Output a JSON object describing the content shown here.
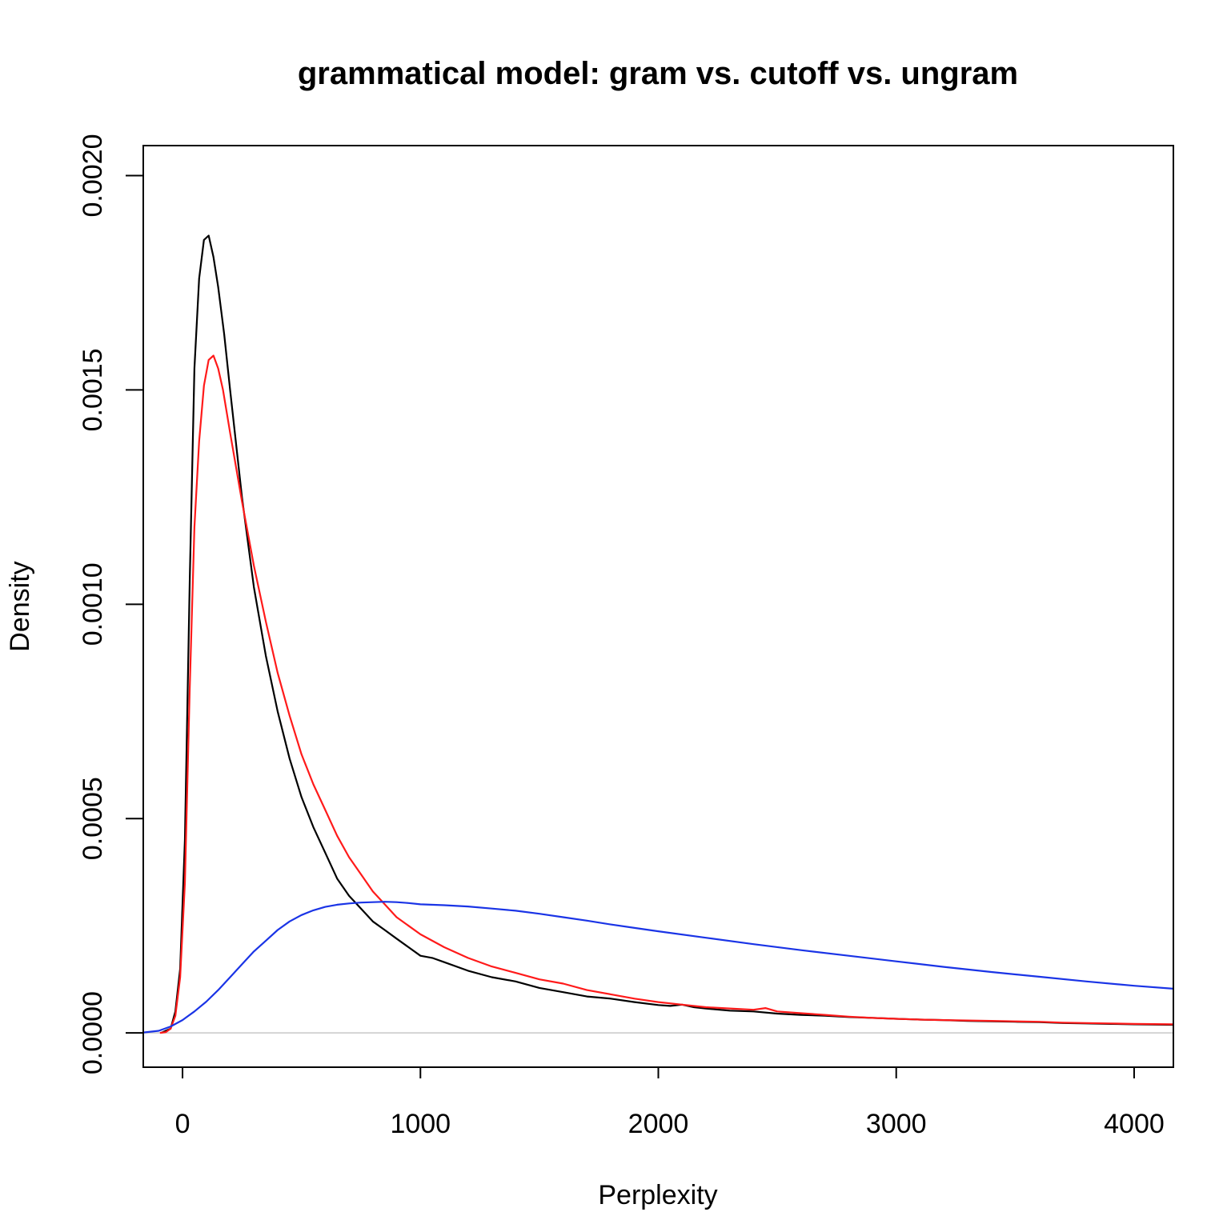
{
  "chart_data": {
    "type": "line",
    "title": "grammatical model: gram vs. cutoff vs. ungram",
    "xlabel": "Perplexity",
    "ylabel": "Density",
    "xlim": [
      -165,
      4165
    ],
    "ylim": [
      -8e-05,
      0.00207
    ],
    "x_ticks": [
      0,
      1000,
      2000,
      3000,
      4000
    ],
    "x_tick_labels": [
      "0",
      "1000",
      "2000",
      "3000",
      "4000"
    ],
    "y_ticks": [
      0,
      0.0005,
      0.001,
      0.0015,
      0.002
    ],
    "y_tick_labels": [
      "0.0000",
      "0.0005",
      "0.0010",
      "0.0015",
      "0.0020"
    ],
    "grid": false,
    "legend": "none",
    "reference_line": {
      "y": 0,
      "color": "#c8c8c8"
    },
    "series": [
      {
        "color": "#000000",
        "x": [
          -90,
          -50,
          -30,
          -10,
          10,
          30,
          50,
          70,
          90,
          110,
          130,
          150,
          175,
          200,
          250,
          300,
          350,
          400,
          450,
          500,
          550,
          600,
          650,
          700,
          750,
          800,
          850,
          900,
          950,
          1000,
          1050,
          1100,
          1200,
          1300,
          1400,
          1500,
          1600,
          1700,
          1800,
          1900,
          2000,
          2050,
          2100,
          2150,
          2200,
          2300,
          2400,
          2500,
          2600,
          2700,
          2800,
          2900,
          3000,
          3100,
          3200,
          3300,
          3400,
          3500,
          3600,
          3700,
          3800,
          3900,
          4000,
          4165
        ],
        "y": [
          0,
          1e-05,
          5e-05,
          0.00015,
          0.00045,
          0.00105,
          0.00155,
          0.00176,
          0.00185,
          0.00186,
          0.00181,
          0.00174,
          0.00163,
          0.0015,
          0.00125,
          0.00104,
          0.00088,
          0.00075,
          0.00064,
          0.00055,
          0.00048,
          0.00042,
          0.00036,
          0.00032,
          0.00029,
          0.00026,
          0.00024,
          0.00022,
          0.0002,
          0.00018,
          0.000175,
          0.000165,
          0.000145,
          0.00013,
          0.00012,
          0.000105,
          9.5e-05,
          8.5e-05,
          8e-05,
          7.2e-05,
          6.5e-05,
          6.3e-05,
          6.6e-05,
          6e-05,
          5.7e-05,
          5.2e-05,
          5e-05,
          4.5e-05,
          4.2e-05,
          4e-05,
          3.7e-05,
          3.5e-05,
          3.3e-05,
          3.1e-05,
          3e-05,
          2.8e-05,
          2.7e-05,
          2.6e-05,
          2.5e-05,
          2.3e-05,
          2.2e-05,
          2.1e-05,
          2e-05,
          1.9e-05
        ]
      },
      {
        "color": "#ff1a1a",
        "x": [
          -95,
          -70,
          -50,
          -30,
          -10,
          10,
          30,
          50,
          70,
          90,
          110,
          130,
          150,
          170,
          200,
          250,
          300,
          350,
          400,
          450,
          500,
          550,
          600,
          650,
          700,
          750,
          800,
          850,
          900,
          950,
          1000,
          1100,
          1200,
          1300,
          1400,
          1500,
          1600,
          1700,
          1800,
          1900,
          2000,
          2100,
          2200,
          2300,
          2400,
          2450,
          2500,
          2600,
          2700,
          2800,
          2900,
          3000,
          3100,
          3200,
          3300,
          3400,
          3500,
          3600,
          3700,
          3800,
          3900,
          4000,
          4165
        ],
        "y": [
          0,
          2e-06,
          1e-05,
          4e-05,
          0.00013,
          0.00035,
          0.0008,
          0.00118,
          0.00138,
          0.00151,
          0.00157,
          0.00158,
          0.00155,
          0.0015,
          0.0014,
          0.00124,
          0.00109,
          0.00096,
          0.00084,
          0.00074,
          0.00065,
          0.00058,
          0.00052,
          0.00046,
          0.00041,
          0.00037,
          0.00033,
          0.0003,
          0.00027,
          0.00025,
          0.00023,
          0.0002,
          0.000175,
          0.000155,
          0.00014,
          0.000125,
          0.000115,
          0.0001,
          9e-05,
          8e-05,
          7.2e-05,
          6.6e-05,
          6e-05,
          5.7e-05,
          5.4e-05,
          5.8e-05,
          5e-05,
          4.6e-05,
          4.2e-05,
          3.8e-05,
          3.5e-05,
          3.3e-05,
          3.1e-05,
          3e-05,
          2.9e-05,
          2.8e-05,
          2.7e-05,
          2.6e-05,
          2.4e-05,
          2.3e-05,
          2.2e-05,
          2.1e-05,
          2e-05
        ]
      },
      {
        "color": "#1a34e6",
        "x": [
          -165,
          -100,
          -50,
          0,
          50,
          100,
          150,
          200,
          250,
          300,
          350,
          400,
          450,
          500,
          550,
          600,
          650,
          700,
          750,
          800,
          850,
          900,
          950,
          1000,
          1100,
          1200,
          1300,
          1400,
          1500,
          1600,
          1700,
          1800,
          1900,
          2000,
          2200,
          2400,
          2600,
          2800,
          3000,
          3200,
          3400,
          3600,
          3800,
          4000,
          4165
        ],
        "y": [
          1e-06,
          5e-06,
          1.5e-05,
          3e-05,
          5e-05,
          7.3e-05,
          0.0001,
          0.00013,
          0.00016,
          0.00019,
          0.000215,
          0.00024,
          0.00026,
          0.000275,
          0.000286,
          0.000294,
          0.000299,
          0.000302,
          0.000304,
          0.000305,
          0.000306,
          0.000305,
          0.000303,
          0.0003,
          0.000298,
          0.000295,
          0.00029,
          0.000285,
          0.000278,
          0.00027,
          0.000262,
          0.000253,
          0.000245,
          0.000237,
          0.000222,
          0.000207,
          0.000193,
          0.00018,
          0.000167,
          0.000154,
          0.000142,
          0.000131,
          0.00012,
          0.00011,
          0.000103
        ]
      }
    ]
  }
}
